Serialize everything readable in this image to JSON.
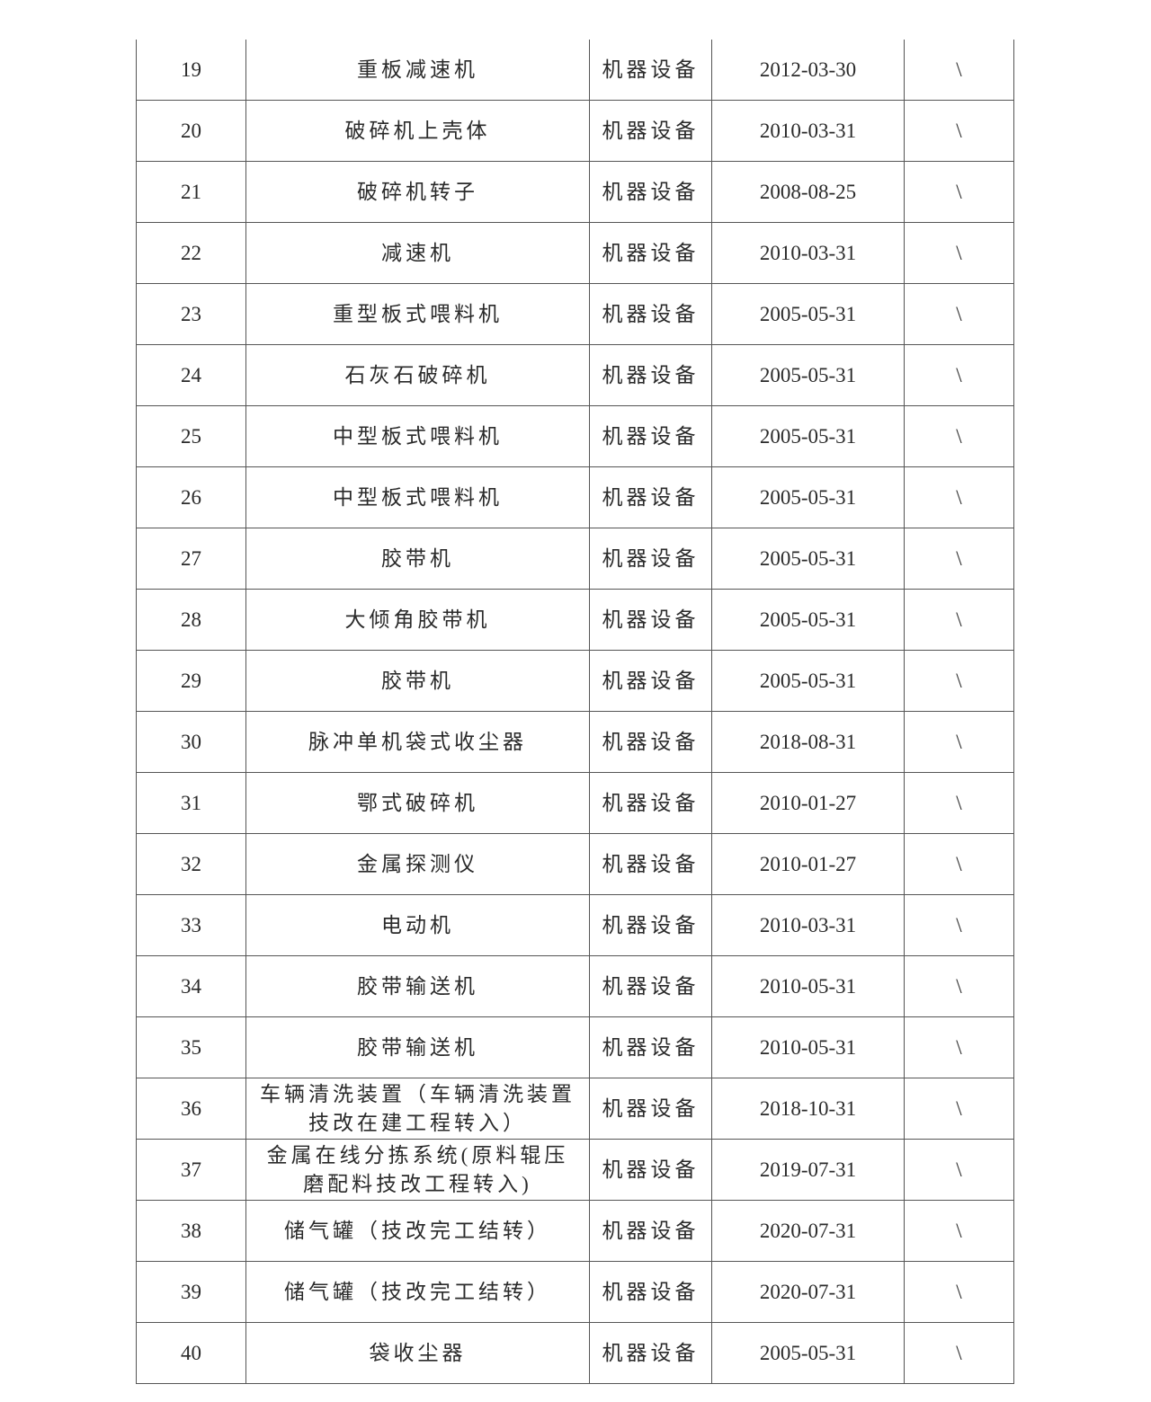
{
  "table": {
    "rows": [
      {
        "no": "19",
        "name": "重板减速机",
        "category": "机器设备",
        "date": "2012-03-30",
        "extra": "\\"
      },
      {
        "no": "20",
        "name": "破碎机上壳体",
        "category": "机器设备",
        "date": "2010-03-31",
        "extra": "\\"
      },
      {
        "no": "21",
        "name": "破碎机转子",
        "category": "机器设备",
        "date": "2008-08-25",
        "extra": "\\"
      },
      {
        "no": "22",
        "name": "减速机",
        "category": "机器设备",
        "date": "2010-03-31",
        "extra": "\\"
      },
      {
        "no": "23",
        "name": "重型板式喂料机",
        "category": "机器设备",
        "date": "2005-05-31",
        "extra": "\\"
      },
      {
        "no": "24",
        "name": "石灰石破碎机",
        "category": "机器设备",
        "date": "2005-05-31",
        "extra": "\\"
      },
      {
        "no": "25",
        "name": "中型板式喂料机",
        "category": "机器设备",
        "date": "2005-05-31",
        "extra": "\\"
      },
      {
        "no": "26",
        "name": "中型板式喂料机",
        "category": "机器设备",
        "date": "2005-05-31",
        "extra": "\\"
      },
      {
        "no": "27",
        "name": "胶带机",
        "category": "机器设备",
        "date": "2005-05-31",
        "extra": "\\"
      },
      {
        "no": "28",
        "name": "大倾角胶带机",
        "category": "机器设备",
        "date": "2005-05-31",
        "extra": "\\"
      },
      {
        "no": "29",
        "name": "胶带机",
        "category": "机器设备",
        "date": "2005-05-31",
        "extra": "\\"
      },
      {
        "no": "30",
        "name": "脉冲单机袋式收尘器",
        "category": "机器设备",
        "date": "2018-08-31",
        "extra": "\\"
      },
      {
        "no": "31",
        "name": "鄂式破碎机",
        "category": "机器设备",
        "date": "2010-01-27",
        "extra": "\\"
      },
      {
        "no": "32",
        "name": "金属探测仪",
        "category": "机器设备",
        "date": "2010-01-27",
        "extra": "\\"
      },
      {
        "no": "33",
        "name": "电动机",
        "category": "机器设备",
        "date": "2010-03-31",
        "extra": "\\"
      },
      {
        "no": "34",
        "name": "胶带输送机",
        "category": "机器设备",
        "date": "2010-05-31",
        "extra": "\\"
      },
      {
        "no": "35",
        "name": "胶带输送机",
        "category": "机器设备",
        "date": "2010-05-31",
        "extra": "\\"
      },
      {
        "no": "36",
        "name": "车辆清洗装置（车辆清洗装置技改在建工程转入）",
        "category": "机器设备",
        "date": "2018-10-31",
        "extra": "\\"
      },
      {
        "no": "37",
        "name": "金属在线分拣系统(原料辊压磨配料技改工程转入)",
        "category": "机器设备",
        "date": "2019-07-31",
        "extra": "\\"
      },
      {
        "no": "38",
        "name": "储气罐（技改完工结转）",
        "category": "机器设备",
        "date": "2020-07-31",
        "extra": "\\"
      },
      {
        "no": "39",
        "name": "储气罐（技改完工结转）",
        "category": "机器设备",
        "date": "2020-07-31",
        "extra": "\\"
      },
      {
        "no": "40",
        "name": "袋收尘器",
        "category": "机器设备",
        "date": "2005-05-31",
        "extra": "\\"
      }
    ]
  }
}
